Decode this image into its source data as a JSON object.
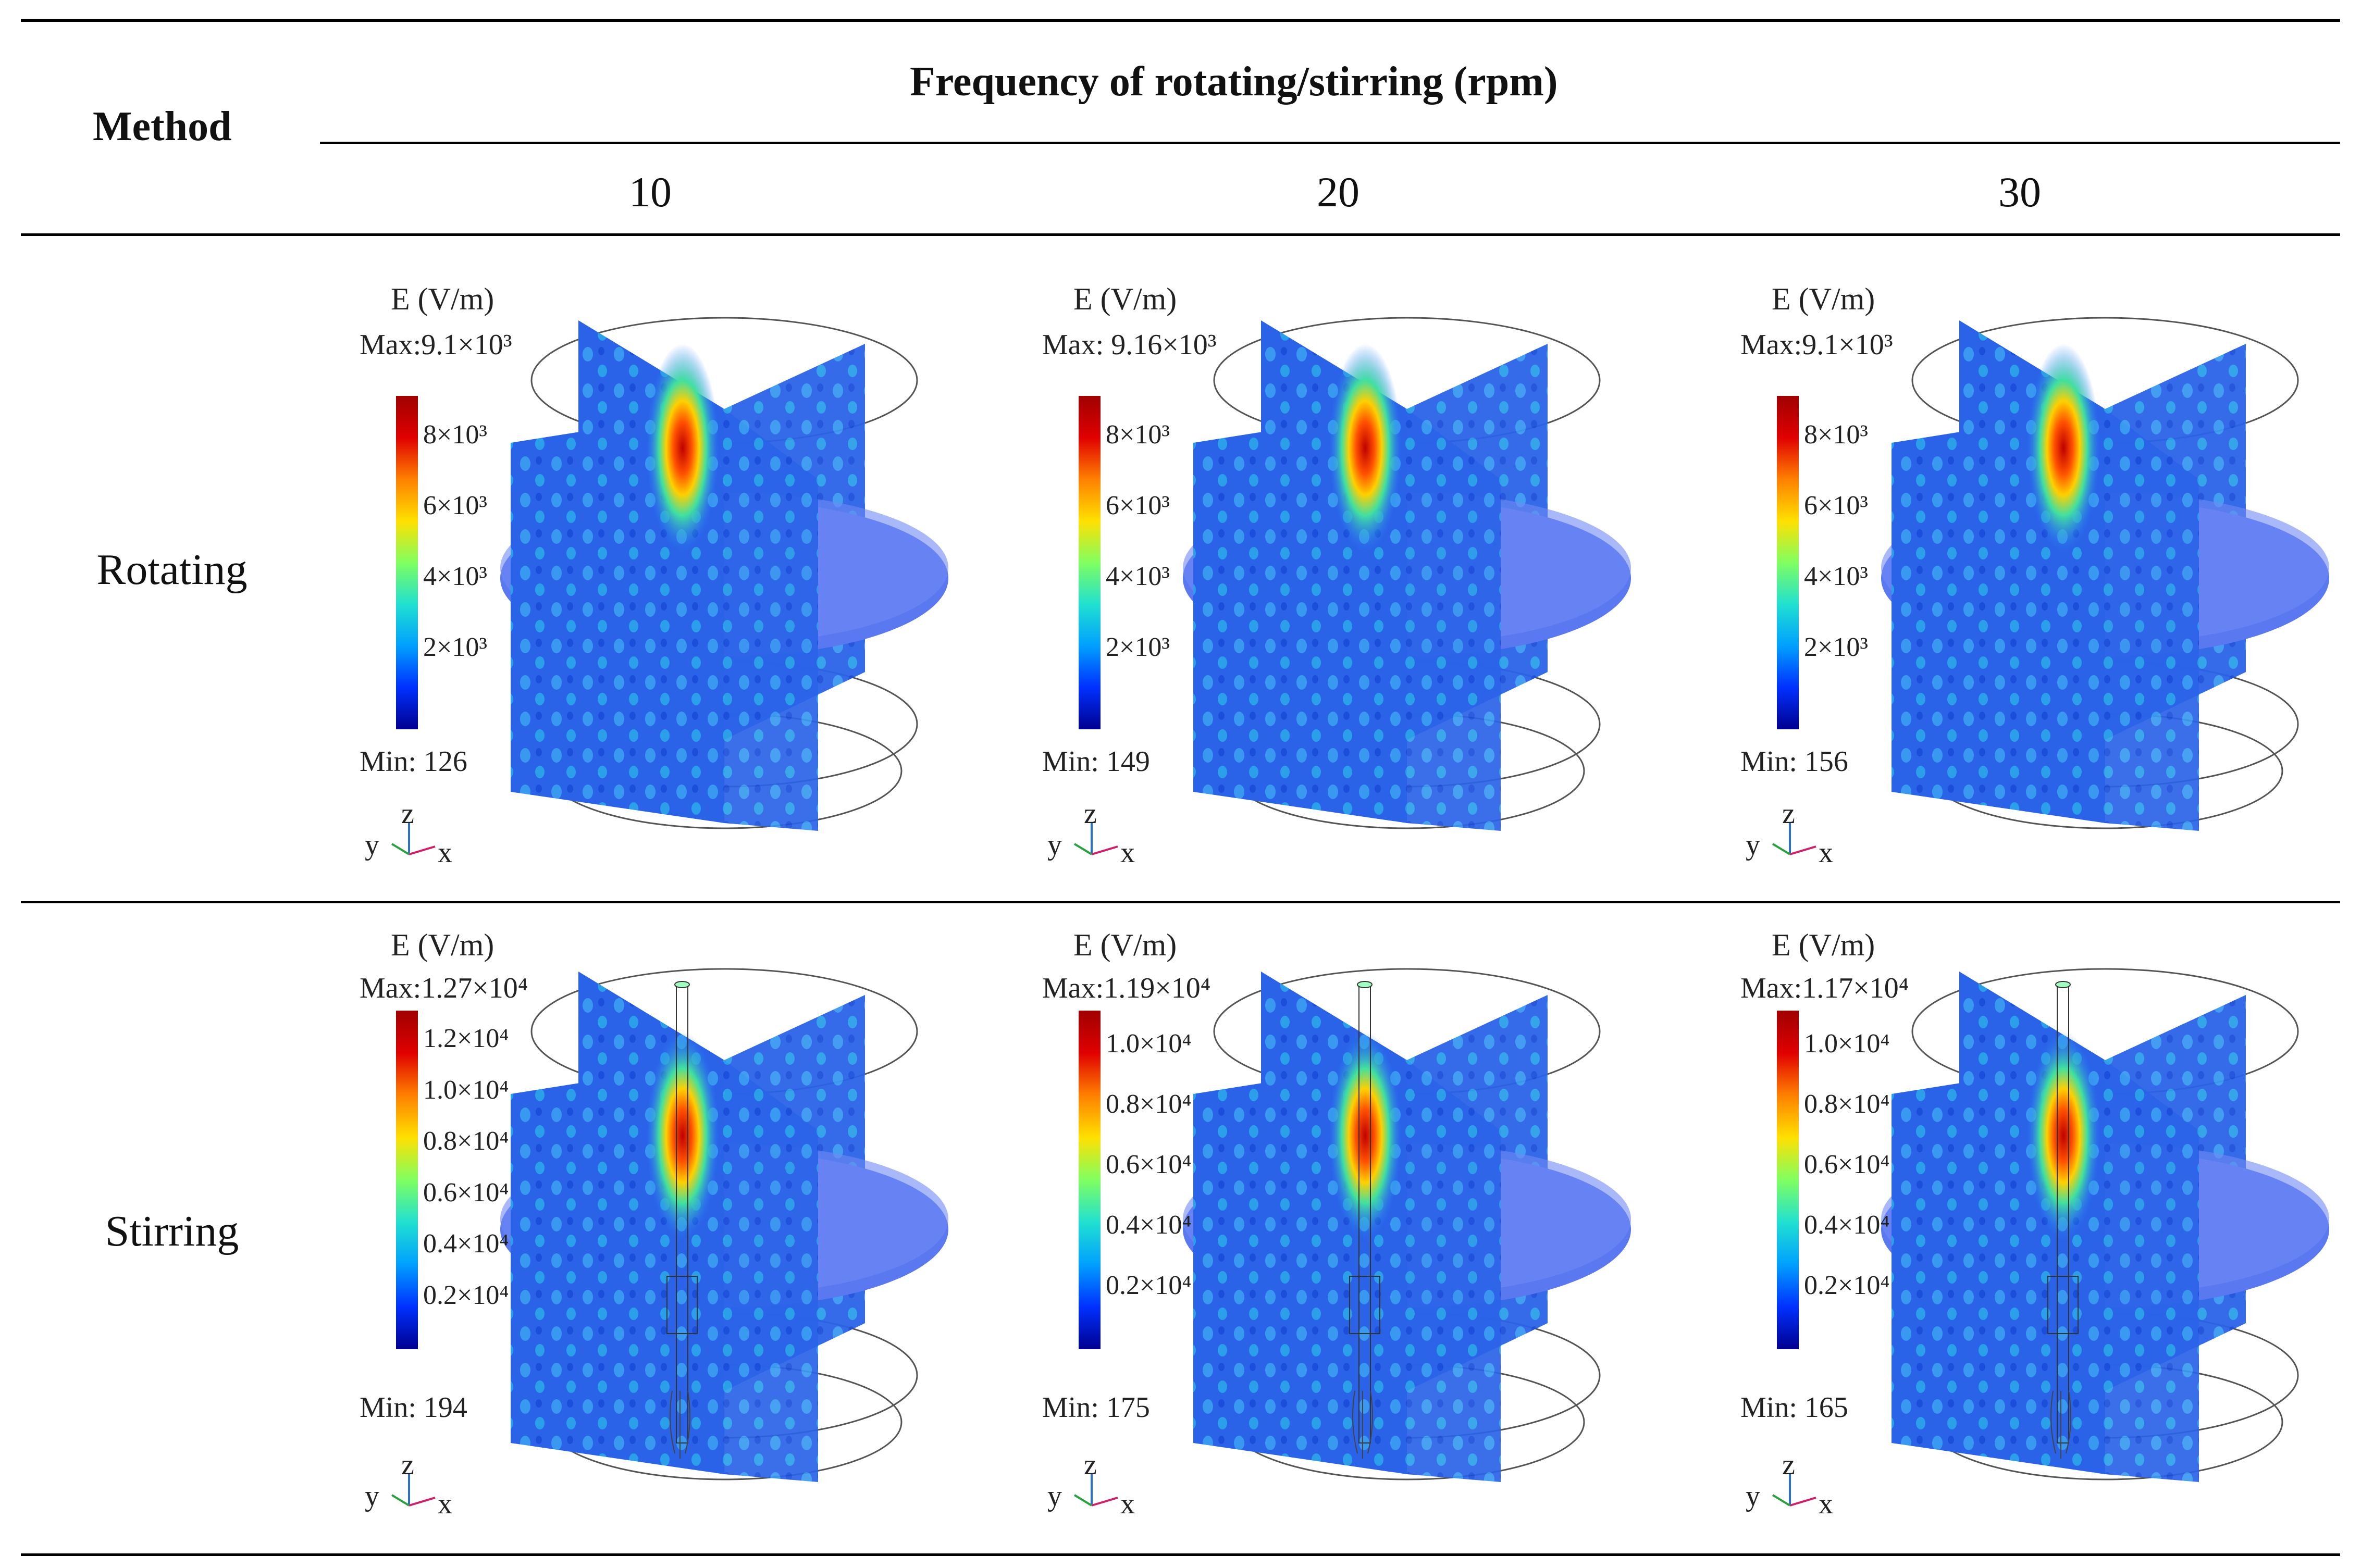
{
  "header": {
    "method": "Method",
    "frequency": "Frequency of rotating/stirring (rpm)",
    "columns": [
      "10",
      "20",
      "30"
    ]
  },
  "rows": [
    {
      "label": "Rotating",
      "panels": [
        {
          "title": "E (V/m)",
          "max": "Max:9.1×10³",
          "min": "Min: 126",
          "ticks": [
            "8×10³",
            "6×10³",
            "4×10³",
            "2×10³"
          ]
        },
        {
          "title": "E (V/m)",
          "max": "Max: 9.16×10³",
          "min": "Min: 149",
          "ticks": [
            "8×10³",
            "6×10³",
            "4×10³",
            "2×10³"
          ]
        },
        {
          "title": "E (V/m)",
          "max": "Max:9.1×10³",
          "min": "Min: 156",
          "ticks": [
            "8×10³",
            "6×10³",
            "4×10³",
            "2×10³"
          ]
        }
      ]
    },
    {
      "label": "Stirring",
      "panels": [
        {
          "title": "E (V/m)",
          "max": "Max:1.27×10⁴",
          "min": "Min: 194",
          "ticks": [
            "1.2×10⁴",
            "1.0×10⁴",
            "0.8×10⁴",
            "0.6×10⁴",
            "0.4×10⁴",
            "0.2×10⁴"
          ]
        },
        {
          "title": "E (V/m)",
          "max": "Max:1.19×10⁴",
          "min": "Min: 175",
          "ticks": [
            "1.0×10⁴",
            "0.8×10⁴",
            "0.6×10⁴",
            "0.4×10⁴",
            "0.2×10⁴"
          ]
        },
        {
          "title": "E (V/m)",
          "max": "Max:1.17×10⁴",
          "min": "Min: 165",
          "ticks": [
            "1.0×10⁴",
            "0.8×10⁴",
            "0.6×10⁴",
            "0.4×10⁴",
            "0.2×10⁴"
          ]
        }
      ]
    }
  ],
  "axes": {
    "y": "y",
    "z": "z",
    "x": "x"
  },
  "colors": {
    "colormap": [
      "#00008f",
      "#0030ff",
      "#00a0ff",
      "#20e0d0",
      "#80ff60",
      "#ffe000",
      "#ff8000",
      "#e00000",
      "#a00000"
    ],
    "slice_blue": "#2a63e8",
    "disk": "#5a78f0",
    "outline": "#555555"
  }
}
